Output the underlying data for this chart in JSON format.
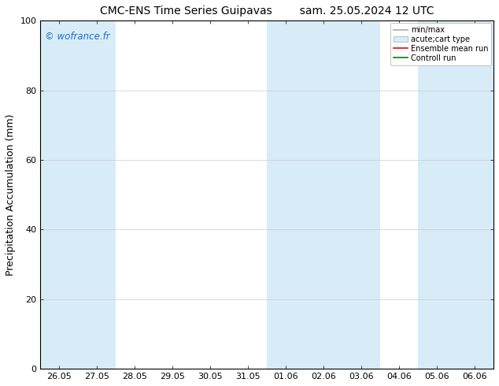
{
  "title_left": "CMC-ENS Time Series Guipavas",
  "title_right": "sam. 25.05.2024 12 UTC",
  "ylabel": "Precipitation Accumulation (mm)",
  "watermark": "© wofrance.fr",
  "watermark_color": "#1a6fc4",
  "ylim": [
    0,
    100
  ],
  "yticks": [
    0,
    20,
    40,
    60,
    80,
    100
  ],
  "x_labels": [
    "26.05",
    "27.05",
    "28.05",
    "29.05",
    "30.05",
    "31.05",
    "01.06",
    "02.06",
    "03.06",
    "04.06",
    "05.06",
    "06.06"
  ],
  "bg_color": "#ffffff",
  "band_color": "#d8ecf8",
  "grid_color": "#cccccc",
  "tick_label_fontsize": 8,
  "axis_label_fontsize": 9,
  "title_fontsize": 10,
  "shaded_x_indices": [
    0,
    1,
    6,
    7,
    8,
    10,
    11
  ]
}
